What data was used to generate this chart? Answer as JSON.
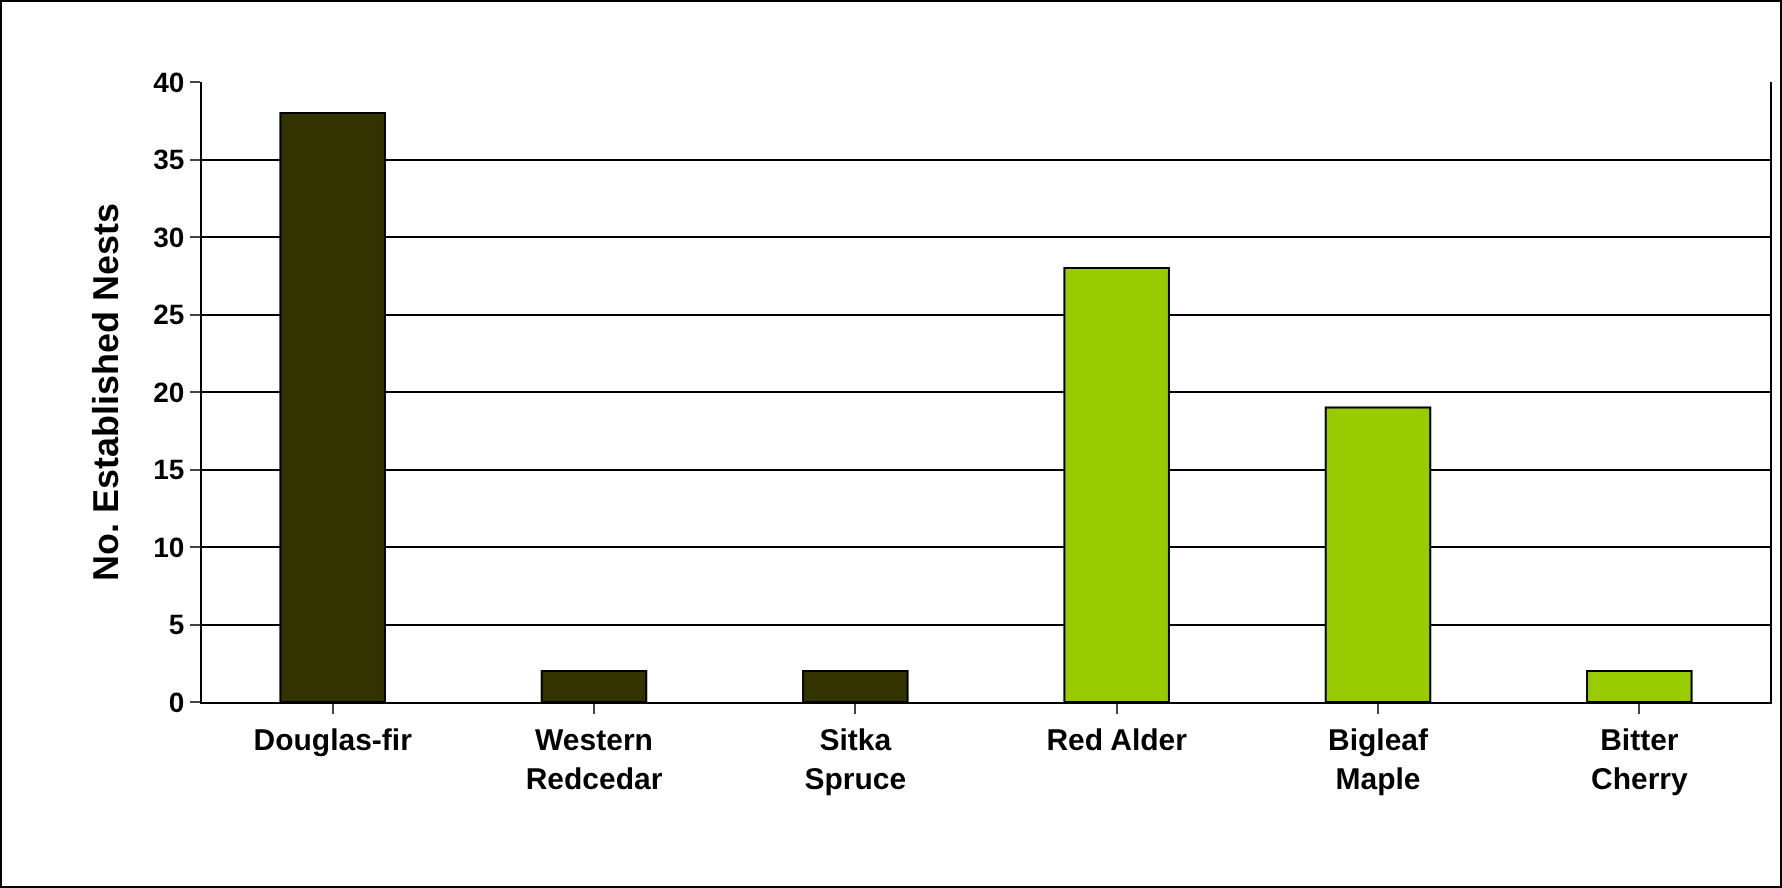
{
  "chart_data": {
    "type": "bar",
    "ylabel": "No. Established Nests",
    "categories": [
      "Douglas-fir",
      "Western\nRedcedar",
      "Sitka\nSpruce",
      "Red Alder",
      "Bigleaf\nMaple",
      "Bitter\nCherry"
    ],
    "values": [
      38,
      2,
      2,
      28,
      19,
      2
    ],
    "colors": [
      "#333300",
      "#333300",
      "#333300",
      "#99cc00",
      "#99cc00",
      "#99cc00"
    ],
    "ylim": [
      0,
      40
    ],
    "yticks": [
      0,
      5,
      10,
      15,
      20,
      25,
      30,
      35,
      40
    ],
    "grid": "y"
  }
}
